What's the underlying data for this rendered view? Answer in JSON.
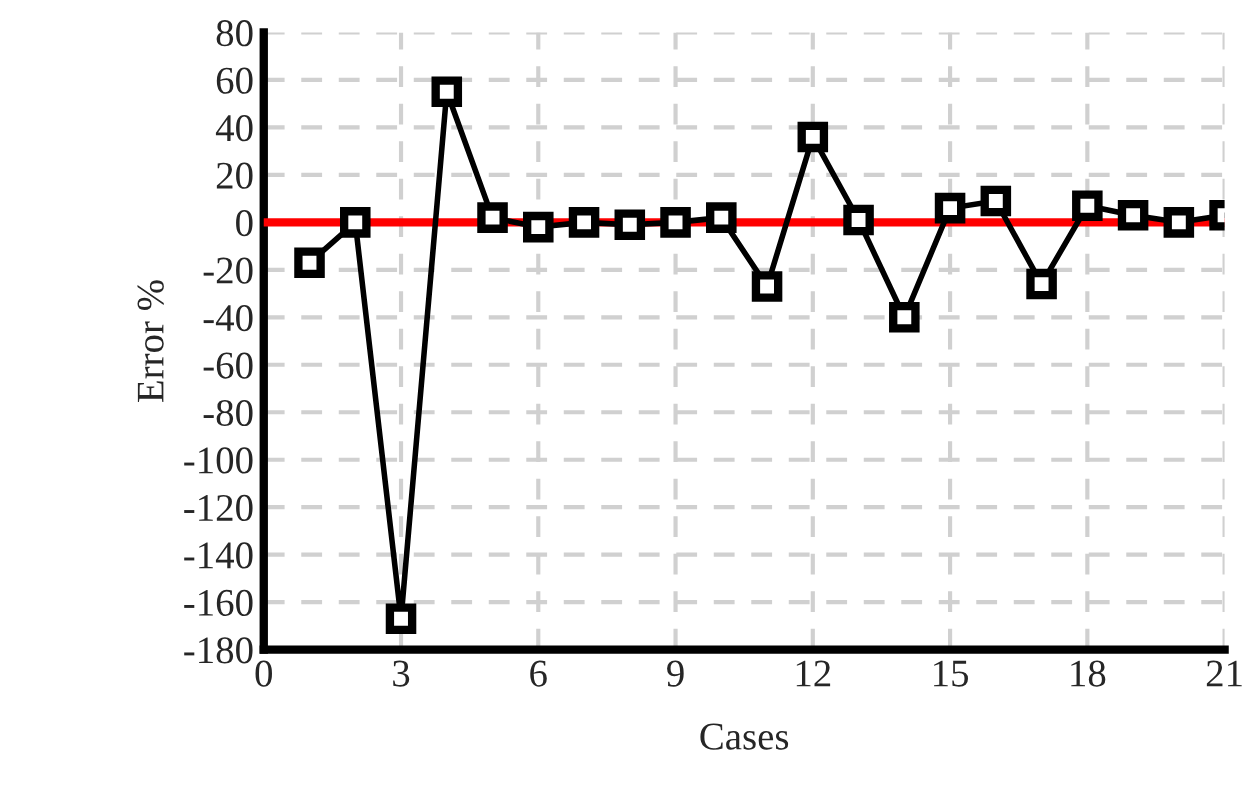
{
  "chart_data": {
    "type": "line",
    "xlabel": "Cases",
    "ylabel": "Error %",
    "x": [
      1,
      2,
      3,
      4,
      5,
      6,
      7,
      8,
      9,
      10,
      11,
      12,
      13,
      14,
      15,
      16,
      17,
      18,
      19,
      20,
      21
    ],
    "series": [
      {
        "color": "#000000",
        "values": [
          -17,
          0,
          -167,
          55,
          2,
          -2,
          0,
          -1,
          0,
          2,
          -27,
          36,
          1,
          -40,
          6,
          9,
          -26,
          7,
          3,
          0,
          3
        ]
      }
    ],
    "xlim": [
      0,
      21
    ],
    "xticks": [
      0,
      3,
      6,
      9,
      12,
      15,
      18,
      21
    ],
    "ylim": [
      -180,
      80
    ],
    "yticks": [
      -180,
      -160,
      -140,
      -120,
      -100,
      -80,
      -60,
      -40,
      -20,
      0,
      20,
      40,
      60,
      80
    ],
    "ref_lines": [
      {
        "axis": "y",
        "value": 0,
        "color": "#ff0000"
      }
    ],
    "grid": true,
    "marker": "square",
    "line_style": "solid",
    "legend": false
  }
}
